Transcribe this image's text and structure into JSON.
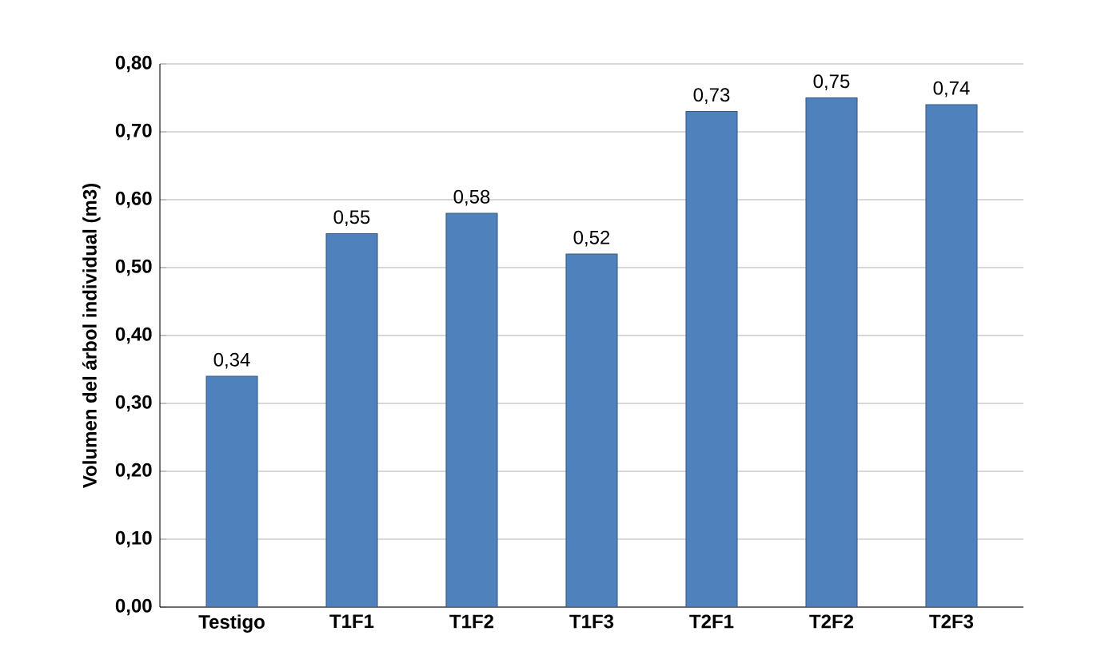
{
  "chart_data": {
    "type": "bar",
    "ylabel": "Volumen del árbol individual (m3)",
    "categories": [
      "Testigo",
      "T1F1",
      "T1F2",
      "T1F3",
      "T2F1",
      "T2F2",
      "T2F3"
    ],
    "values": [
      0.34,
      0.55,
      0.58,
      0.52,
      0.73,
      0.75,
      0.74
    ],
    "value_labels": [
      "0,34",
      "0,55",
      "0,58",
      "0,52",
      "0,73",
      "0,75",
      "0,74"
    ],
    "color": "#4f81bd",
    "ylim": [
      0,
      0.8
    ],
    "yticks": [
      {
        "value": 0,
        "label": "0,00"
      },
      {
        "value": 0.1,
        "label": "0,10"
      },
      {
        "value": 0.2,
        "label": "0,20"
      },
      {
        "value": 0.3,
        "label": "0,30"
      },
      {
        "value": 0.4,
        "label": "0,40"
      },
      {
        "value": 0.5,
        "label": "0,50"
      },
      {
        "value": 0.6,
        "label": "0,60"
      },
      {
        "value": 0.7,
        "label": "0,70"
      },
      {
        "value": 0.8,
        "label": "0,80"
      }
    ],
    "grid": "y"
  }
}
